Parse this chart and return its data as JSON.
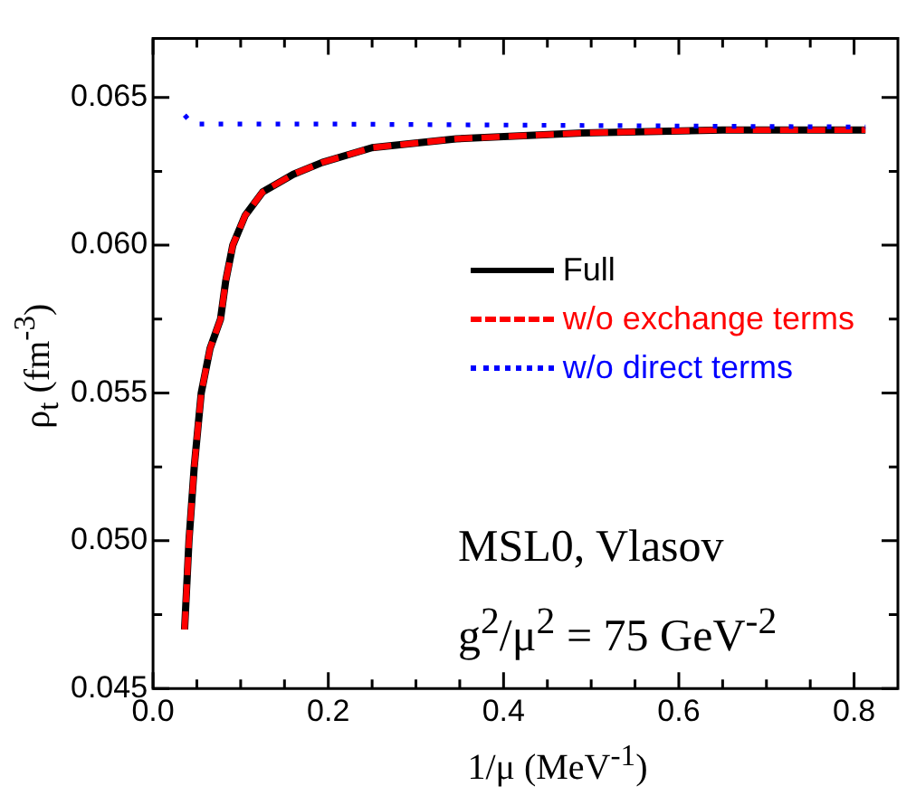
{
  "chart_data": {
    "type": "line",
    "xlabel": "1/μ (MeV$^{-1}$)",
    "ylabel": "ρ$_{t}$ (fm$^{-3}$)",
    "xlim": [
      0,
      0.85
    ],
    "ylim": [
      0.045,
      0.067
    ],
    "xticks": [
      {
        "value": 0,
        "label": "0.0"
      },
      {
        "value": 0.05,
        "label": null
      },
      {
        "value": 0.1,
        "label": null
      },
      {
        "value": 0.15,
        "label": null
      },
      {
        "value": 0.2,
        "label": "0.2"
      },
      {
        "value": 0.25,
        "label": null
      },
      {
        "value": 0.3,
        "label": null
      },
      {
        "value": 0.35,
        "label": null
      },
      {
        "value": 0.4,
        "label": "0.4"
      },
      {
        "value": 0.45,
        "label": null
      },
      {
        "value": 0.5,
        "label": null
      },
      {
        "value": 0.55,
        "label": null
      },
      {
        "value": 0.6,
        "label": "0.6"
      },
      {
        "value": 0.65,
        "label": null
      },
      {
        "value": 0.7,
        "label": null
      },
      {
        "value": 0.75,
        "label": null
      },
      {
        "value": 0.8,
        "label": "0.8"
      }
    ],
    "yticks": [
      0.045,
      {
        "value": 0.0475,
        "label": null
      },
      {
        "value": 0.05,
        "label": "0.050"
      },
      {
        "value": 0.0525,
        "label": null
      },
      0.055,
      {
        "value": 0.0575,
        "label": null
      },
      {
        "value": 0.06,
        "label": "0.060"
      },
      {
        "value": 0.0625,
        "label": null
      },
      0.065
    ],
    "series": [
      {
        "name": "Full",
        "color": "#000000",
        "line_style": "solid",
        "x": [
          0.036,
          0.041,
          0.047,
          0.055,
          0.065,
          0.077,
          0.083,
          0.091,
          0.105,
          0.125,
          0.16,
          0.193,
          0.25,
          0.346,
          0.49,
          0.65,
          0.813
        ],
        "values": [
          0.047,
          0.05,
          0.0525,
          0.055,
          0.0565,
          0.0575,
          0.0588,
          0.06,
          0.061,
          0.0618,
          0.0624,
          0.0628,
          0.0633,
          0.0636,
          0.0638,
          0.0639,
          0.0639
        ]
      },
      {
        "name": "w/o exchange terms",
        "color": "#ff0000",
        "line_style": "dashed",
        "x": [
          0.036,
          0.041,
          0.047,
          0.055,
          0.065,
          0.077,
          0.083,
          0.091,
          0.105,
          0.125,
          0.16,
          0.193,
          0.25,
          0.346,
          0.49,
          0.65,
          0.813
        ],
        "values": [
          0.047,
          0.05,
          0.0525,
          0.055,
          0.0565,
          0.0575,
          0.0588,
          0.06,
          0.061,
          0.0618,
          0.0624,
          0.0628,
          0.0633,
          0.0636,
          0.0638,
          0.0639,
          0.0639
        ]
      },
      {
        "name": "w/o direct terms",
        "color": "#0000ff",
        "line_style": "dotted",
        "x": [
          0.036,
          0.045,
          0.2,
          0.5,
          0.813
        ],
        "values": [
          0.0644,
          0.0641,
          0.0641,
          0.06405,
          0.064
        ]
      }
    ],
    "annotations": [
      "MSL0, Vlasov",
      "g$^{2}$/μ$^{2}$ = 75 GeV$^{-2}$"
    ],
    "legend": "right",
    "marker": "none",
    "grid": false
  }
}
